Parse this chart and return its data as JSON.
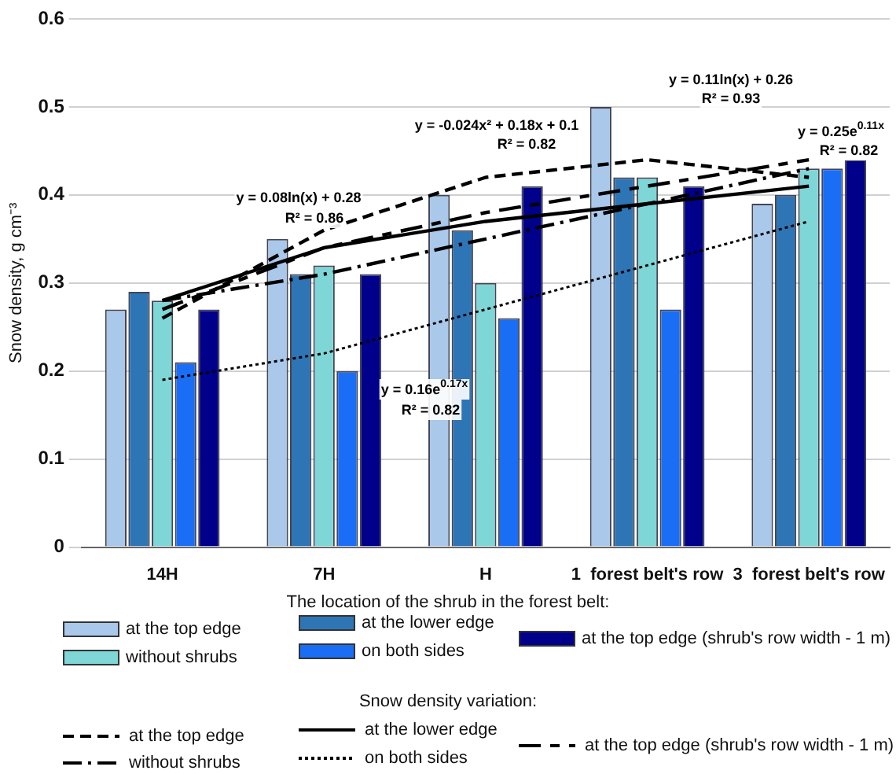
{
  "chart_data": {
    "type": "bar",
    "ylabel": "Snow density, g cm⁻³",
    "legend_title": "The location of the shrub in the forest belt:",
    "categories": [
      "14H",
      "7H",
      "H",
      "1  forest belt's row",
      "3  forest belt's row"
    ],
    "series": [
      {
        "name": "at the top edge",
        "color": "#a9c8ea",
        "values": [
          0.27,
          0.35,
          0.4,
          0.5,
          0.39
        ]
      },
      {
        "name": "at the lower edge",
        "color": "#2e75b6",
        "values": [
          0.29,
          0.31,
          0.36,
          0.42,
          0.4
        ]
      },
      {
        "name": "without shrubs",
        "color": "#7fd6d6",
        "values": [
          0.28,
          0.32,
          0.3,
          0.42,
          0.43
        ]
      },
      {
        "name": "on both sides",
        "color": "#1a6ef5",
        "values": [
          0.21,
          0.2,
          0.26,
          0.27,
          0.43
        ]
      },
      {
        "name": "at the top edge (shrub's row width - 1 m)",
        "color": "#00008b",
        "values": [
          0.27,
          0.31,
          0.41,
          0.41,
          0.44
        ]
      },
      {
        "name": "at the top edge",
        "type": "line",
        "line_style": "dashed",
        "color": "#000000",
        "values": [
          0.26,
          0.36,
          0.42,
          0.44,
          0.42
        ]
      },
      {
        "name": "at the lower edge",
        "type": "line",
        "line_style": "solid",
        "color": "#000000",
        "values": [
          0.28,
          0.34,
          0.37,
          0.39,
          0.41
        ]
      },
      {
        "name": "without shrubs",
        "type": "line",
        "line_style": "dashed",
        "color": "#000000",
        "values": [
          0.28,
          0.31,
          0.35,
          0.39,
          0.43
        ]
      },
      {
        "name": "on both sides",
        "type": "line",
        "line_style": "dotted",
        "color": "#000000",
        "values": [
          0.19,
          0.22,
          0.27,
          0.32,
          0.37
        ]
      },
      {
        "name": "at the top edge (shrub's row width - 1 m)",
        "type": "line",
        "line_style": "dashed",
        "color": "#000000",
        "values": [
          0.27,
          0.34,
          0.38,
          0.41,
          0.44
        ]
      }
    ],
    "ylim": [
      0,
      0.6
    ],
    "yticks": [
      0,
      0.1,
      0.2,
      0.3,
      0.4,
      0.5,
      0.6
    ],
    "grid": "y",
    "legend": "bottom",
    "marker": "none",
    "annotations": [
      "y = 0.08ln(x) + 0.28",
      "R² = 0.86",
      "y = -0.024x² + 0.18x + 0.1",
      "R² = 0.82",
      "y = 0.11ln(x) + 0.26",
      "R² = 0.93",
      "y = 0.25e$^{0.11x}$",
      "R² = 0.82",
      "y = 0.16e$^{0.17x}$",
      "R² = 0.82",
      "Snow density variation:"
    ]
  }
}
